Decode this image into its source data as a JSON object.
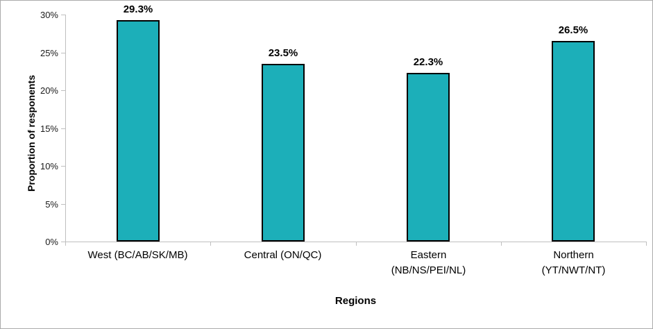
{
  "chart_data": {
    "type": "bar",
    "title": "",
    "categories": [
      [
        "West (BC/AB/SK/MB)"
      ],
      [
        "Central (ON/QC)"
      ],
      [
        "Eastern",
        "(NB/NS/PEI/NL)"
      ],
      [
        "Northern",
        "(YT/NWT/NT)"
      ]
    ],
    "values": [
      29.3,
      23.5,
      22.3,
      26.5
    ],
    "data_labels": [
      "29.3%",
      "23.5%",
      "22.3%",
      "26.5%"
    ],
    "xlabel": "Regions",
    "ylabel": "Proportion of responents",
    "ylim": [
      0,
      30
    ],
    "ytick_step": 5,
    "ytick_labels": [
      "0%",
      "5%",
      "10%",
      "15%",
      "20%",
      "25%",
      "30%"
    ],
    "grid": false,
    "legend": false,
    "colors": {
      "bar_fill": "#1cafb9",
      "bar_border": "#000000",
      "axis": "#bfbfbf",
      "text": "#000000"
    }
  }
}
